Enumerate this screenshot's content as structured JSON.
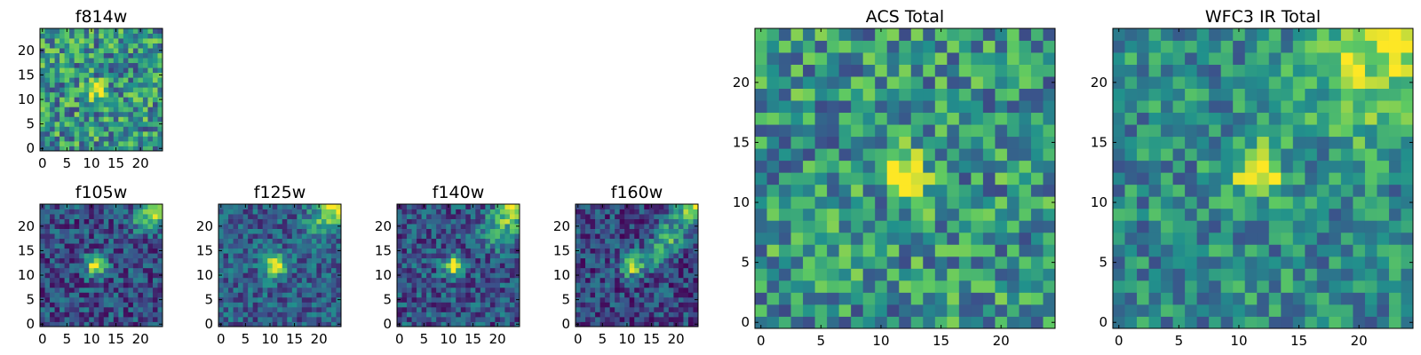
{
  "colormap": "viridis",
  "colormap_stops": [
    "#440154",
    "#3b528b",
    "#21918c",
    "#5ec962",
    "#fde725"
  ],
  "chart_data": [
    {
      "type": "heatmap",
      "title": "f814w",
      "grid_size": 25,
      "x_ticks": [
        "0",
        "5",
        "10",
        "15",
        "20"
      ],
      "y_ticks": [
        "0",
        "5",
        "10",
        "15",
        "20"
      ],
      "xlim": [
        -0.5,
        24.5
      ],
      "ylim": [
        -0.5,
        24.5
      ],
      "origin": "lower",
      "peak": [
        11,
        12
      ],
      "features": [
        {
          "x": 11,
          "y": 12,
          "amp": 0.55,
          "sigma": 1.2
        }
      ],
      "base": 0.52,
      "noise": 0.32,
      "seed": 11
    },
    {
      "type": "heatmap",
      "title": "f105w",
      "grid_size": 25,
      "x_ticks": [
        "0",
        "5",
        "10",
        "15",
        "20"
      ],
      "y_ticks": [
        "0",
        "5",
        "10",
        "15",
        "20"
      ],
      "xlim": [
        -0.5,
        24.5
      ],
      "ylim": [
        -0.5,
        24.5
      ],
      "origin": "lower",
      "peak": [
        11,
        12
      ],
      "features": [
        {
          "x": 11,
          "y": 12,
          "amp": 0.75,
          "sigma": 1.5
        },
        {
          "x": 23.5,
          "y": 23.5,
          "amp": 0.65,
          "sigma": 2.2
        },
        {
          "x": 20,
          "y": 21,
          "amp": 0.2,
          "sigma": 2.2
        }
      ],
      "base": 0.24,
      "noise": 0.22,
      "seed": 23
    },
    {
      "type": "heatmap",
      "title": "f125w",
      "grid_size": 25,
      "x_ticks": [
        "0",
        "5",
        "10",
        "15",
        "20"
      ],
      "y_ticks": [
        "0",
        "5",
        "10",
        "15",
        "20"
      ],
      "xlim": [
        -0.5,
        24.5
      ],
      "ylim": [
        -0.5,
        24.5
      ],
      "origin": "lower",
      "peak": [
        11,
        12
      ],
      "features": [
        {
          "x": 11,
          "y": 12,
          "amp": 0.72,
          "sigma": 1.6
        },
        {
          "x": 23.5,
          "y": 23.5,
          "amp": 0.6,
          "sigma": 2.4
        },
        {
          "x": 20,
          "y": 20,
          "amp": 0.25,
          "sigma": 2.2
        }
      ],
      "base": 0.3,
      "noise": 0.2,
      "seed": 37
    },
    {
      "type": "heatmap",
      "title": "f140w",
      "grid_size": 25,
      "x_ticks": [
        "0",
        "5",
        "10",
        "15",
        "20"
      ],
      "y_ticks": [
        "0",
        "5",
        "10",
        "15",
        "20"
      ],
      "xlim": [
        -0.5,
        24.5
      ],
      "ylim": [
        -0.5,
        24.5
      ],
      "origin": "lower",
      "peak": [
        11,
        12
      ],
      "features": [
        {
          "x": 11,
          "y": 12,
          "amp": 0.7,
          "sigma": 1.4
        },
        {
          "x": 23.5,
          "y": 23.5,
          "amp": 0.65,
          "sigma": 2.3
        },
        {
          "x": 20,
          "y": 19,
          "amp": 0.35,
          "sigma": 2.4
        }
      ],
      "base": 0.26,
      "noise": 0.22,
      "seed": 41
    },
    {
      "type": "heatmap",
      "title": "f160w",
      "grid_size": 25,
      "x_ticks": [
        "0",
        "5",
        "10",
        "15",
        "20"
      ],
      "y_ticks": [
        "0",
        "5",
        "10",
        "15",
        "20"
      ],
      "xlim": [
        -0.5,
        24.5
      ],
      "ylim": [
        -0.5,
        24.5
      ],
      "origin": "lower",
      "peak": [
        11,
        12
      ],
      "features": [
        {
          "x": 11,
          "y": 12,
          "amp": 0.7,
          "sigma": 1.5
        },
        {
          "x": 23.5,
          "y": 23.5,
          "amp": 0.7,
          "sigma": 2.3
        },
        {
          "x": 19,
          "y": 18,
          "amp": 0.4,
          "sigma": 2.2
        },
        {
          "x": 16,
          "y": 14,
          "amp": 0.3,
          "sigma": 2.0
        }
      ],
      "base": 0.22,
      "noise": 0.22,
      "seed": 53
    },
    {
      "type": "heatmap",
      "title": "ACS Total",
      "grid_size": 25,
      "x_ticks": [
        "0",
        "5",
        "10",
        "15",
        "20"
      ],
      "y_ticks": [
        "0",
        "5",
        "10",
        "15",
        "20"
      ],
      "xlim": [
        -0.5,
        24.5
      ],
      "ylim": [
        -0.5,
        24.5
      ],
      "origin": "lower",
      "peak": [
        12,
        12
      ],
      "features": [
        {
          "x": 12,
          "y": 12.5,
          "amp": 0.6,
          "sigma": 1.3
        }
      ],
      "base": 0.52,
      "noise": 0.3,
      "seed": 67
    },
    {
      "type": "heatmap",
      "title": "WFC3 IR Total",
      "grid_size": 25,
      "x_ticks": [
        "0",
        "5",
        "10",
        "15",
        "20"
      ],
      "y_ticks": [
        "0",
        "5",
        "10",
        "15",
        "20"
      ],
      "xlim": [
        -0.5,
        24.5
      ],
      "ylim": [
        -0.5,
        24.5
      ],
      "origin": "lower",
      "peak": [
        11,
        12
      ],
      "features": [
        {
          "x": 11.5,
          "y": 12.5,
          "amp": 0.55,
          "sigma": 1.5
        },
        {
          "x": 24,
          "y": 24,
          "amp": 0.45,
          "sigma": 4.0
        },
        {
          "x": 19,
          "y": 19,
          "amp": 0.15,
          "sigma": 3.5
        }
      ],
      "base": 0.48,
      "noise": 0.24,
      "seed": 79
    }
  ]
}
